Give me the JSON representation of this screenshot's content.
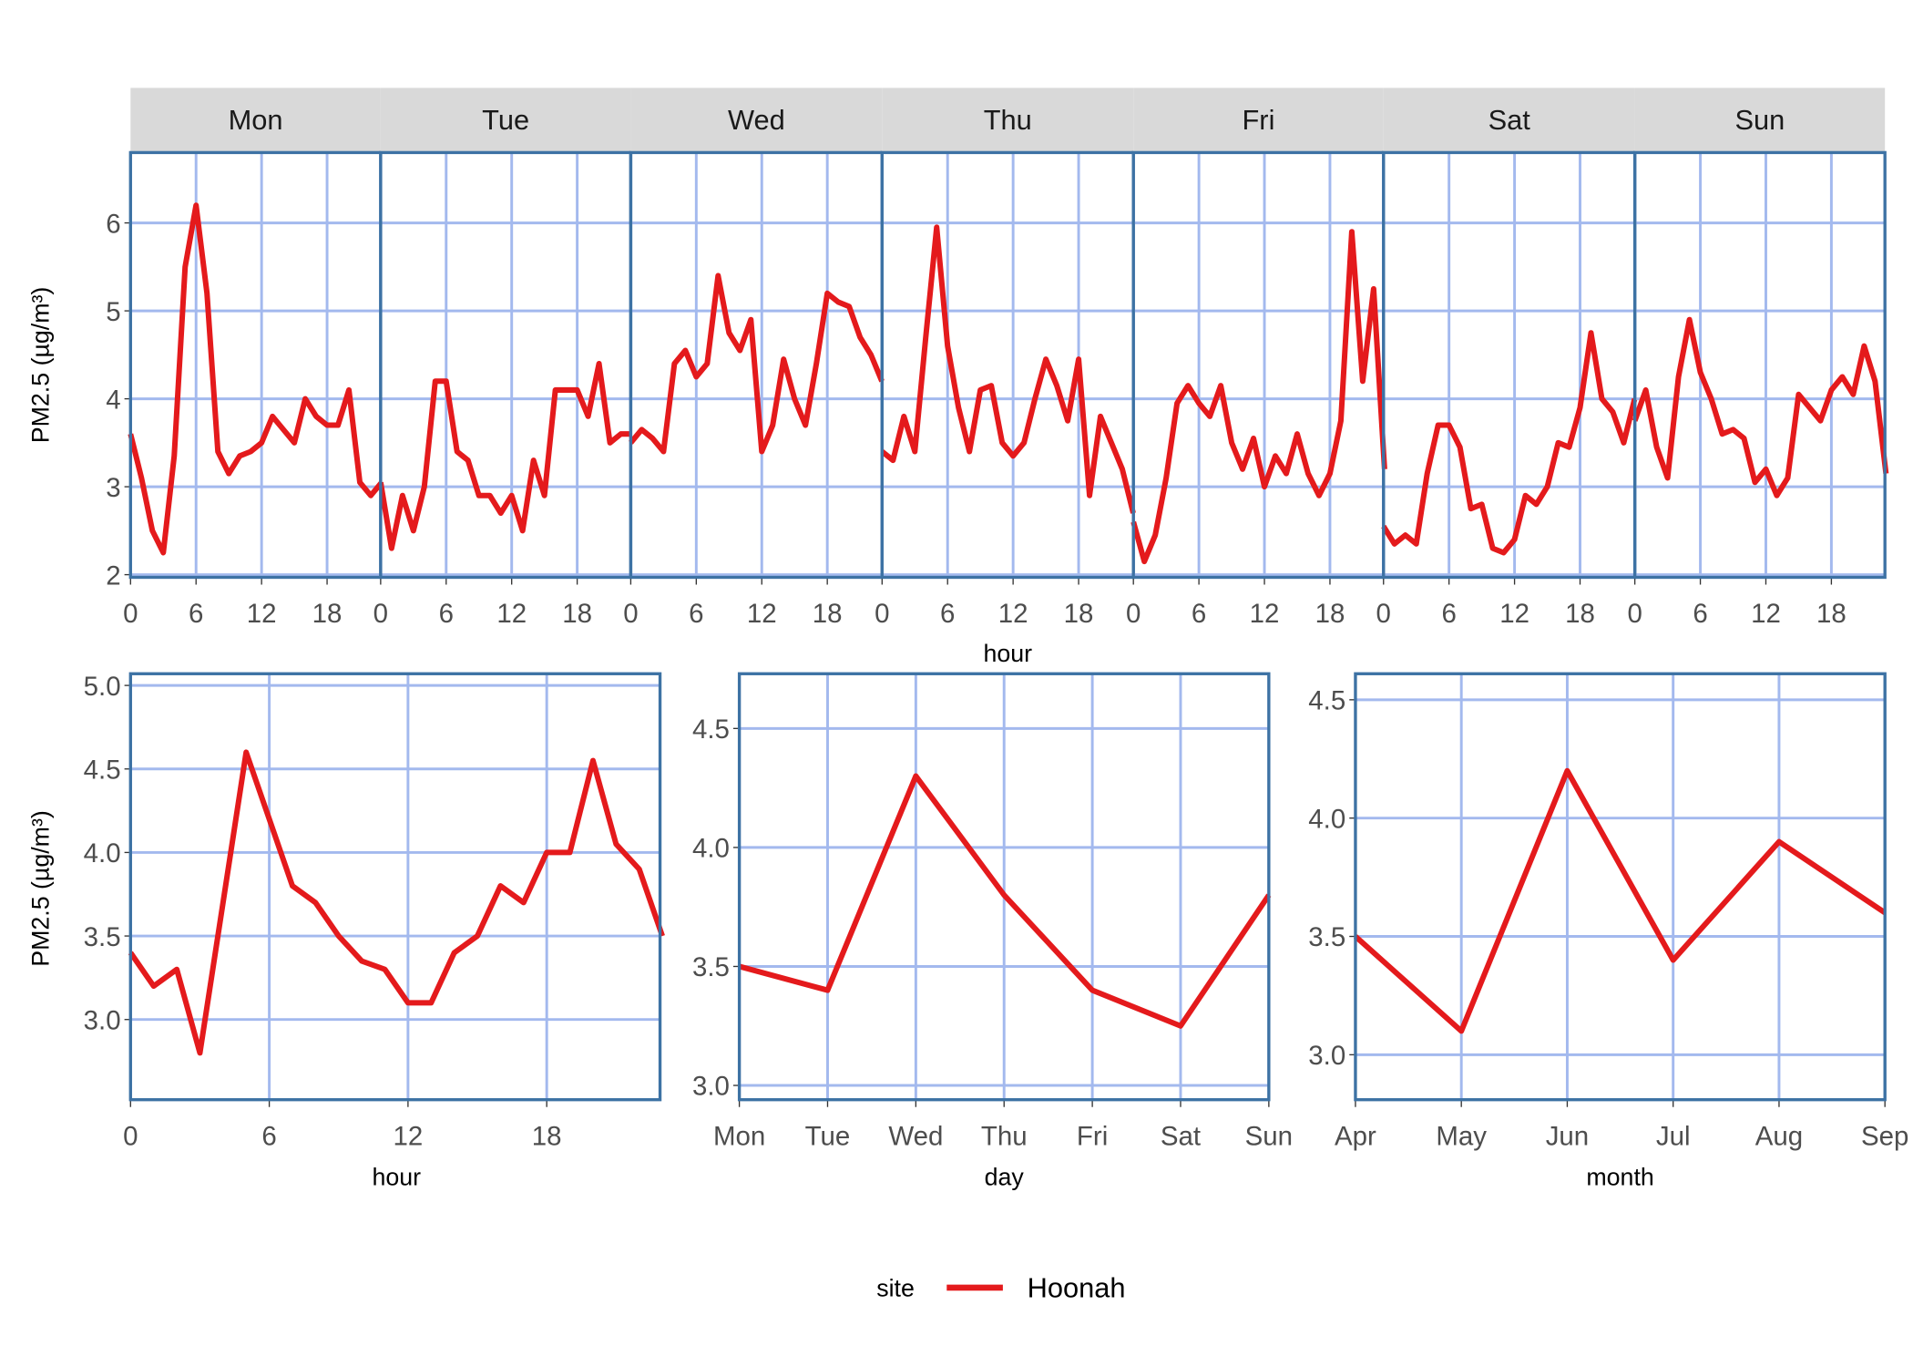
{
  "colors": {
    "series": "#e41a1c",
    "grid": "#a3b9ee",
    "frame": "#3d72a4",
    "strip": "#d9d9d9"
  },
  "legend": {
    "title": "site",
    "entries": [
      "Hoonah"
    ],
    "position": "bottom"
  },
  "chart_data": [
    {
      "type": "line",
      "facets": [
        "Mon",
        "Tue",
        "Wed",
        "Thu",
        "Fri",
        "Sat",
        "Sun"
      ],
      "xlabel": "hour",
      "ylabel": "PM2.5 (µg/m³)",
      "xticks": [
        0,
        6,
        12,
        18
      ],
      "yticks": [
        2,
        3,
        4,
        5,
        6
      ],
      "ylim": [
        1.97,
        6.8
      ],
      "grid": true,
      "series": [
        {
          "name": "Hoonah",
          "values_by_facet": {
            "Mon": [
              3.6,
              3.1,
              2.5,
              2.25,
              3.35,
              5.5,
              6.2,
              5.2,
              3.4,
              3.15,
              3.35,
              3.4,
              3.5,
              3.8,
              3.65,
              3.5,
              4.0,
              3.8,
              3.7,
              3.7,
              4.1,
              3.05,
              2.9,
              3.05
            ],
            "Tue": [
              3.05,
              2.3,
              2.9,
              2.5,
              3.0,
              4.2,
              4.2,
              3.4,
              3.3,
              2.9,
              2.9,
              2.7,
              2.9,
              2.5,
              3.3,
              2.9,
              4.1,
              4.1,
              4.1,
              3.8,
              4.4,
              3.5,
              3.6,
              3.6
            ],
            "Wed": [
              3.5,
              3.65,
              3.55,
              3.4,
              4.4,
              4.55,
              4.25,
              4.4,
              5.4,
              4.75,
              4.55,
              4.9,
              3.4,
              3.7,
              4.45,
              4.0,
              3.7,
              4.4,
              5.2,
              5.1,
              5.05,
              4.7,
              4.5,
              4.2
            ],
            "Thu": [
              3.4,
              3.3,
              3.8,
              3.4,
              4.7,
              5.95,
              4.6,
              3.9,
              3.4,
              4.1,
              4.15,
              3.5,
              3.35,
              3.5,
              4.0,
              4.45,
              4.15,
              3.75,
              4.45,
              2.9,
              3.8,
              3.5,
              3.2,
              2.7
            ],
            "Fri": [
              2.6,
              2.15,
              2.45,
              3.1,
              3.95,
              4.15,
              3.95,
              3.8,
              4.15,
              3.5,
              3.2,
              3.55,
              3.0,
              3.35,
              3.15,
              3.6,
              3.15,
              2.9,
              3.15,
              3.75,
              5.9,
              4.2,
              5.25,
              3.2
            ],
            "Sat": [
              2.55,
              2.35,
              2.45,
              2.35,
              3.15,
              3.7,
              3.7,
              3.45,
              2.75,
              2.8,
              2.3,
              2.25,
              2.4,
              2.9,
              2.8,
              3.0,
              3.5,
              3.45,
              3.9,
              4.75,
              4.0,
              3.85,
              3.5,
              4.0
            ],
            "Sun": [
              3.75,
              4.1,
              3.45,
              3.1,
              4.25,
              4.9,
              4.3,
              4.0,
              3.6,
              3.65,
              3.55,
              3.05,
              3.2,
              2.9,
              3.1,
              4.05,
              3.9,
              3.75,
              4.1,
              4.25,
              4.05,
              4.6,
              4.2,
              3.15
            ]
          }
        }
      ]
    },
    {
      "type": "line",
      "xlabel": "hour",
      "ylabel": "PM2.5 (µg/m³)",
      "x": [
        0,
        1,
        2,
        3,
        4,
        5,
        6,
        7,
        8,
        9,
        10,
        11,
        12,
        13,
        14,
        15,
        16,
        17,
        18,
        19,
        20,
        21,
        22,
        23
      ],
      "xticks": [
        0,
        6,
        12,
        18
      ],
      "yticks": [
        "3.0",
        "3.5",
        "4.0",
        "4.5",
        "5.0"
      ],
      "xlim": [
        0,
        22.9
      ],
      "ylim": [
        2.52,
        5.07
      ],
      "grid": true,
      "series": [
        {
          "name": "Hoonah",
          "values": [
            3.4,
            3.2,
            3.3,
            2.8,
            3.7,
            4.6,
            4.2,
            3.8,
            3.7,
            3.5,
            3.35,
            3.3,
            3.1,
            3.1,
            3.4,
            3.5,
            3.8,
            3.7,
            4.0,
            4.0,
            4.55,
            4.05,
            3.9,
            3.5
          ]
        }
      ]
    },
    {
      "type": "line",
      "xlabel": "day",
      "categories": [
        "Mon",
        "Tue",
        "Wed",
        "Thu",
        "Fri",
        "Sat",
        "Sun"
      ],
      "yticks": [
        "3.0",
        "3.5",
        "4.0",
        "4.5"
      ],
      "ylim": [
        2.94,
        4.73
      ],
      "grid": true,
      "series": [
        {
          "name": "Hoonah",
          "values": [
            3.5,
            3.4,
            4.3,
            3.8,
            3.4,
            3.25,
            3.8
          ]
        }
      ]
    },
    {
      "type": "line",
      "xlabel": "month",
      "categories": [
        "Apr",
        "May",
        "Jun",
        "Jul",
        "Aug",
        "Sep"
      ],
      "yticks": [
        "3.0",
        "3.5",
        "4.0",
        "4.5"
      ],
      "ylim": [
        2.81,
        4.61
      ],
      "grid": true,
      "series": [
        {
          "name": "Hoonah",
          "values": [
            3.5,
            3.1,
            4.2,
            3.4,
            3.9,
            3.6
          ]
        }
      ]
    }
  ]
}
